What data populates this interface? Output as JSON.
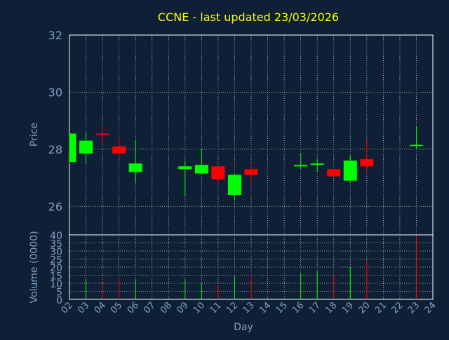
{
  "chart_data": [
    {
      "type": "candlestick",
      "title": "CCNE - last updated 23/03/2026",
      "ylabel": "Price",
      "ylim": [
        25,
        32
      ],
      "yticks": [
        26,
        28,
        30,
        32
      ],
      "grid": true,
      "colors": {
        "up": "#00ff00",
        "down": "#ff0000",
        "title": "#ffff00",
        "axis_text": "#7f9fc4",
        "background": "#0f2036",
        "grid": "#ffffff"
      },
      "candles": [
        {
          "day": "02",
          "open": 27.55,
          "high": 28.55,
          "low": 27.5,
          "close": 28.55
        },
        {
          "day": "03",
          "open": 27.85,
          "high": 28.6,
          "low": 27.5,
          "close": 28.3
        },
        {
          "day": "04",
          "open": 28.55,
          "high": 28.8,
          "low": 28.2,
          "close": 28.5
        },
        {
          "day": "05",
          "open": 28.1,
          "high": 28.4,
          "low": 27.75,
          "close": 27.85
        },
        {
          "day": "06",
          "open": 27.2,
          "high": 28.3,
          "low": 26.8,
          "close": 27.5
        },
        {
          "day": "09",
          "open": 27.3,
          "high": 27.6,
          "low": 26.35,
          "close": 27.4
        },
        {
          "day": "10",
          "open": 27.15,
          "high": 28.0,
          "low": 27.1,
          "close": 27.45
        },
        {
          "day": "11",
          "open": 27.4,
          "high": 27.4,
          "low": 26.8,
          "close": 26.95
        },
        {
          "day": "12",
          "open": 26.4,
          "high": 27.15,
          "low": 26.25,
          "close": 27.1
        },
        {
          "day": "13",
          "open": 27.3,
          "high": 27.45,
          "low": 26.8,
          "close": 27.1
        },
        {
          "day": "16",
          "open": 27.4,
          "high": 27.85,
          "low": 27.3,
          "close": 27.45
        },
        {
          "day": "17",
          "open": 27.45,
          "high": 27.65,
          "low": 27.2,
          "close": 27.5
        },
        {
          "day": "18",
          "open": 27.3,
          "high": 27.3,
          "low": 27.05,
          "close": 27.05
        },
        {
          "day": "19",
          "open": 26.9,
          "high": 27.8,
          "low": 26.85,
          "close": 27.6
        },
        {
          "day": "20",
          "open": 27.65,
          "high": 28.3,
          "low": 27.15,
          "close": 27.4
        },
        {
          "day": "23",
          "open": 28.15,
          "high": 28.8,
          "low": 28.0,
          "close": 28.15
        }
      ]
    },
    {
      "type": "bar",
      "ylabel": "Volume (0000)",
      "xlabel": "Day",
      "ylim": [
        0,
        40
      ],
      "yticks": [
        0,
        5,
        10,
        15,
        20,
        25,
        30,
        35,
        40
      ],
      "categories": [
        "02",
        "03",
        "04",
        "05",
        "06",
        "07",
        "08",
        "09",
        "10",
        "11",
        "12",
        "13",
        "14",
        "15",
        "16",
        "17",
        "18",
        "19",
        "20",
        "21",
        "22",
        "23",
        "24"
      ],
      "volumes": [
        {
          "day": "03",
          "value": 12,
          "direction": "up"
        },
        {
          "day": "04",
          "value": 11,
          "direction": "down"
        },
        {
          "day": "05",
          "value": 13,
          "direction": "down"
        },
        {
          "day": "06",
          "value": 12.5,
          "direction": "up"
        },
        {
          "day": "09",
          "value": 12,
          "direction": "up"
        },
        {
          "day": "10",
          "value": 10,
          "direction": "up"
        },
        {
          "day": "11",
          "value": 9,
          "direction": "down"
        },
        {
          "day": "12",
          "value": 14.5,
          "direction": "up"
        },
        {
          "day": "13",
          "value": 15,
          "direction": "down"
        },
        {
          "day": "16",
          "value": 16,
          "direction": "up"
        },
        {
          "day": "17",
          "value": 17.5,
          "direction": "up"
        },
        {
          "day": "18",
          "value": 15,
          "direction": "down"
        },
        {
          "day": "19",
          "value": 20,
          "direction": "up"
        },
        {
          "day": "20",
          "value": 23.5,
          "direction": "down"
        },
        {
          "day": "23",
          "value": 39,
          "direction": "down"
        }
      ]
    }
  ]
}
